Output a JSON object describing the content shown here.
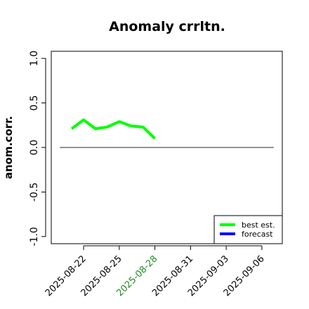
{
  "chart_data": {
    "type": "line",
    "title": "Anomaly crrltn.",
    "y_label": "anom.corr.",
    "x": [
      "2025-08-21",
      "2025-08-22",
      "2025-08-23",
      "2025-08-24",
      "2025-08-25",
      "2025-08-26",
      "2025-08-27",
      "2025-08-28"
    ],
    "series": [
      {
        "name": "best est.",
        "color": "#00ff00",
        "values": [
          0.21,
          0.31,
          0.21,
          0.23,
          0.29,
          0.24,
          0.23,
          0.1
        ]
      },
      {
        "name": "forecast",
        "color": "#0000ff",
        "values": [
          null,
          null,
          null,
          null,
          null,
          null,
          null,
          null
        ]
      }
    ],
    "xlim": [
      "2025-08-20",
      "2025-09-07"
    ],
    "xticks": [
      "2025-08-22",
      "2025-08-25",
      "2025-08-28",
      "2025-08-31",
      "2025-09-03",
      "2025-09-06"
    ],
    "xtick_colors": [
      "#000000",
      "#000000",
      "#228b22",
      "#000000",
      "#000000",
      "#000000"
    ],
    "ylim": [
      -1,
      1
    ],
    "yticks": [
      {
        "value": 1,
        "label": "1.0"
      },
      0.5,
      {
        "value": 0,
        "label": "0.0"
      },
      -0.5,
      {
        "value": -1,
        "label": "-1.0"
      }
    ],
    "reference_line": 0,
    "legend": "bottom-right"
  }
}
